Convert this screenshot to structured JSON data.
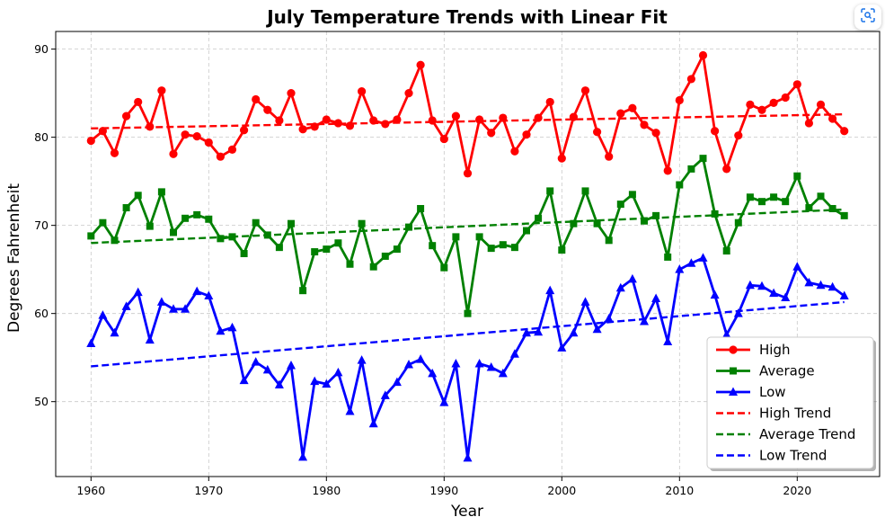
{
  "chart_data": {
    "type": "line",
    "title": "July Temperature Trends with Linear Fit",
    "xlabel": "Year",
    "ylabel": "Degrees Fahrenheit",
    "xlim": [
      1957,
      2027
    ],
    "ylim": [
      41.5,
      92
    ],
    "xticks": [
      1960,
      1970,
      1980,
      1990,
      2000,
      2010,
      2020
    ],
    "yticks": [
      50,
      60,
      70,
      80,
      90
    ],
    "grid": true,
    "legend_position": "lower-right",
    "x": [
      1960,
      1961,
      1962,
      1963,
      1964,
      1965,
      1966,
      1967,
      1968,
      1969,
      1970,
      1971,
      1972,
      1973,
      1974,
      1975,
      1976,
      1977,
      1978,
      1979,
      1980,
      1981,
      1982,
      1983,
      1984,
      1985,
      1986,
      1987,
      1988,
      1989,
      1990,
      1991,
      1992,
      1993,
      1994,
      1995,
      1996,
      1997,
      1998,
      1999,
      2000,
      2001,
      2002,
      2003,
      2004,
      2005,
      2006,
      2007,
      2008,
      2009,
      2010,
      2011,
      2012,
      2013,
      2014,
      2015,
      2016,
      2017,
      2018,
      2019,
      2020,
      2021,
      2022,
      2023,
      2024
    ],
    "series": [
      {
        "name": "High",
        "color": "#ff0000",
        "marker": "circle",
        "values": [
          79.6,
          80.7,
          78.2,
          82.4,
          84.0,
          81.2,
          85.3,
          78.1,
          80.3,
          80.1,
          79.4,
          77.8,
          78.6,
          80.8,
          84.3,
          83.1,
          81.9,
          85.0,
          80.9,
          81.2,
          82.0,
          81.6,
          81.3,
          85.2,
          81.9,
          81.5,
          82.0,
          85.0,
          88.2,
          81.9,
          79.8,
          82.4,
          75.9,
          82.0,
          80.5,
          82.2,
          78.4,
          80.3,
          82.2,
          84.0,
          77.6,
          82.3,
          85.3,
          80.6,
          77.8,
          82.7,
          83.3,
          81.4,
          80.5,
          76.2,
          84.2,
          86.6,
          89.3,
          80.7,
          76.4,
          80.2,
          83.7,
          83.1,
          83.9,
          84.5,
          86.0,
          81.6,
          83.7,
          82.1,
          80.7
        ]
      },
      {
        "name": "Average",
        "color": "#008000",
        "marker": "square",
        "values": [
          68.8,
          70.3,
          68.3,
          72.0,
          73.4,
          69.9,
          73.8,
          69.2,
          70.8,
          71.2,
          70.7,
          68.5,
          68.7,
          66.8,
          70.3,
          68.9,
          67.5,
          70.2,
          62.6,
          67.0,
          67.3,
          68.0,
          65.6,
          70.2,
          65.3,
          66.5,
          67.3,
          69.8,
          71.9,
          67.7,
          65.2,
          68.7,
          60.0,
          68.7,
          67.4,
          67.8,
          67.5,
          69.4,
          70.8,
          73.9,
          67.2,
          70.2,
          73.9,
          70.2,
          68.3,
          72.4,
          73.5,
          70.5,
          71.1,
          66.4,
          74.6,
          76.4,
          77.6,
          71.3,
          67.1,
          70.3,
          73.2,
          72.7,
          73.2,
          72.7,
          75.6,
          72.0,
          73.3,
          71.9,
          71.1
        ]
      },
      {
        "name": "Low",
        "color": "#0000ff",
        "marker": "triangle",
        "values": [
          56.6,
          59.8,
          57.8,
          60.8,
          62.4,
          57.0,
          61.3,
          60.5,
          60.5,
          62.5,
          62.0,
          58.0,
          58.4,
          52.4,
          54.5,
          53.6,
          51.9,
          54.1,
          43.7,
          52.3,
          52.0,
          53.3,
          48.9,
          54.7,
          47.5,
          50.7,
          52.2,
          54.2,
          54.8,
          53.2,
          49.9,
          54.3,
          43.6,
          54.3,
          53.9,
          53.2,
          55.4,
          57.8,
          57.9,
          62.6,
          56.1,
          57.8,
          61.3,
          58.2,
          59.4,
          62.9,
          63.9,
          59.1,
          61.7,
          56.8,
          65.0,
          65.7,
          66.3,
          62.1,
          57.6,
          60.0,
          63.2,
          63.1,
          62.3,
          61.8,
          65.3,
          63.5,
          63.2,
          63.0,
          62.0
        ]
      },
      {
        "name": "High Trend",
        "color": "#ff0000",
        "style": "dashed",
        "x": [
          1960,
          2024
        ],
        "values": [
          81.0,
          82.6
        ]
      },
      {
        "name": "Average Trend",
        "color": "#008000",
        "style": "dashed",
        "x": [
          1960,
          2024
        ],
        "values": [
          68.0,
          71.8
        ]
      },
      {
        "name": "Low Trend",
        "color": "#0000ff",
        "style": "dashed",
        "x": [
          1960,
          2024
        ],
        "values": [
          54.0,
          61.3
        ]
      }
    ]
  },
  "ui": {
    "lens_button_icon": "lens-search-icon"
  }
}
